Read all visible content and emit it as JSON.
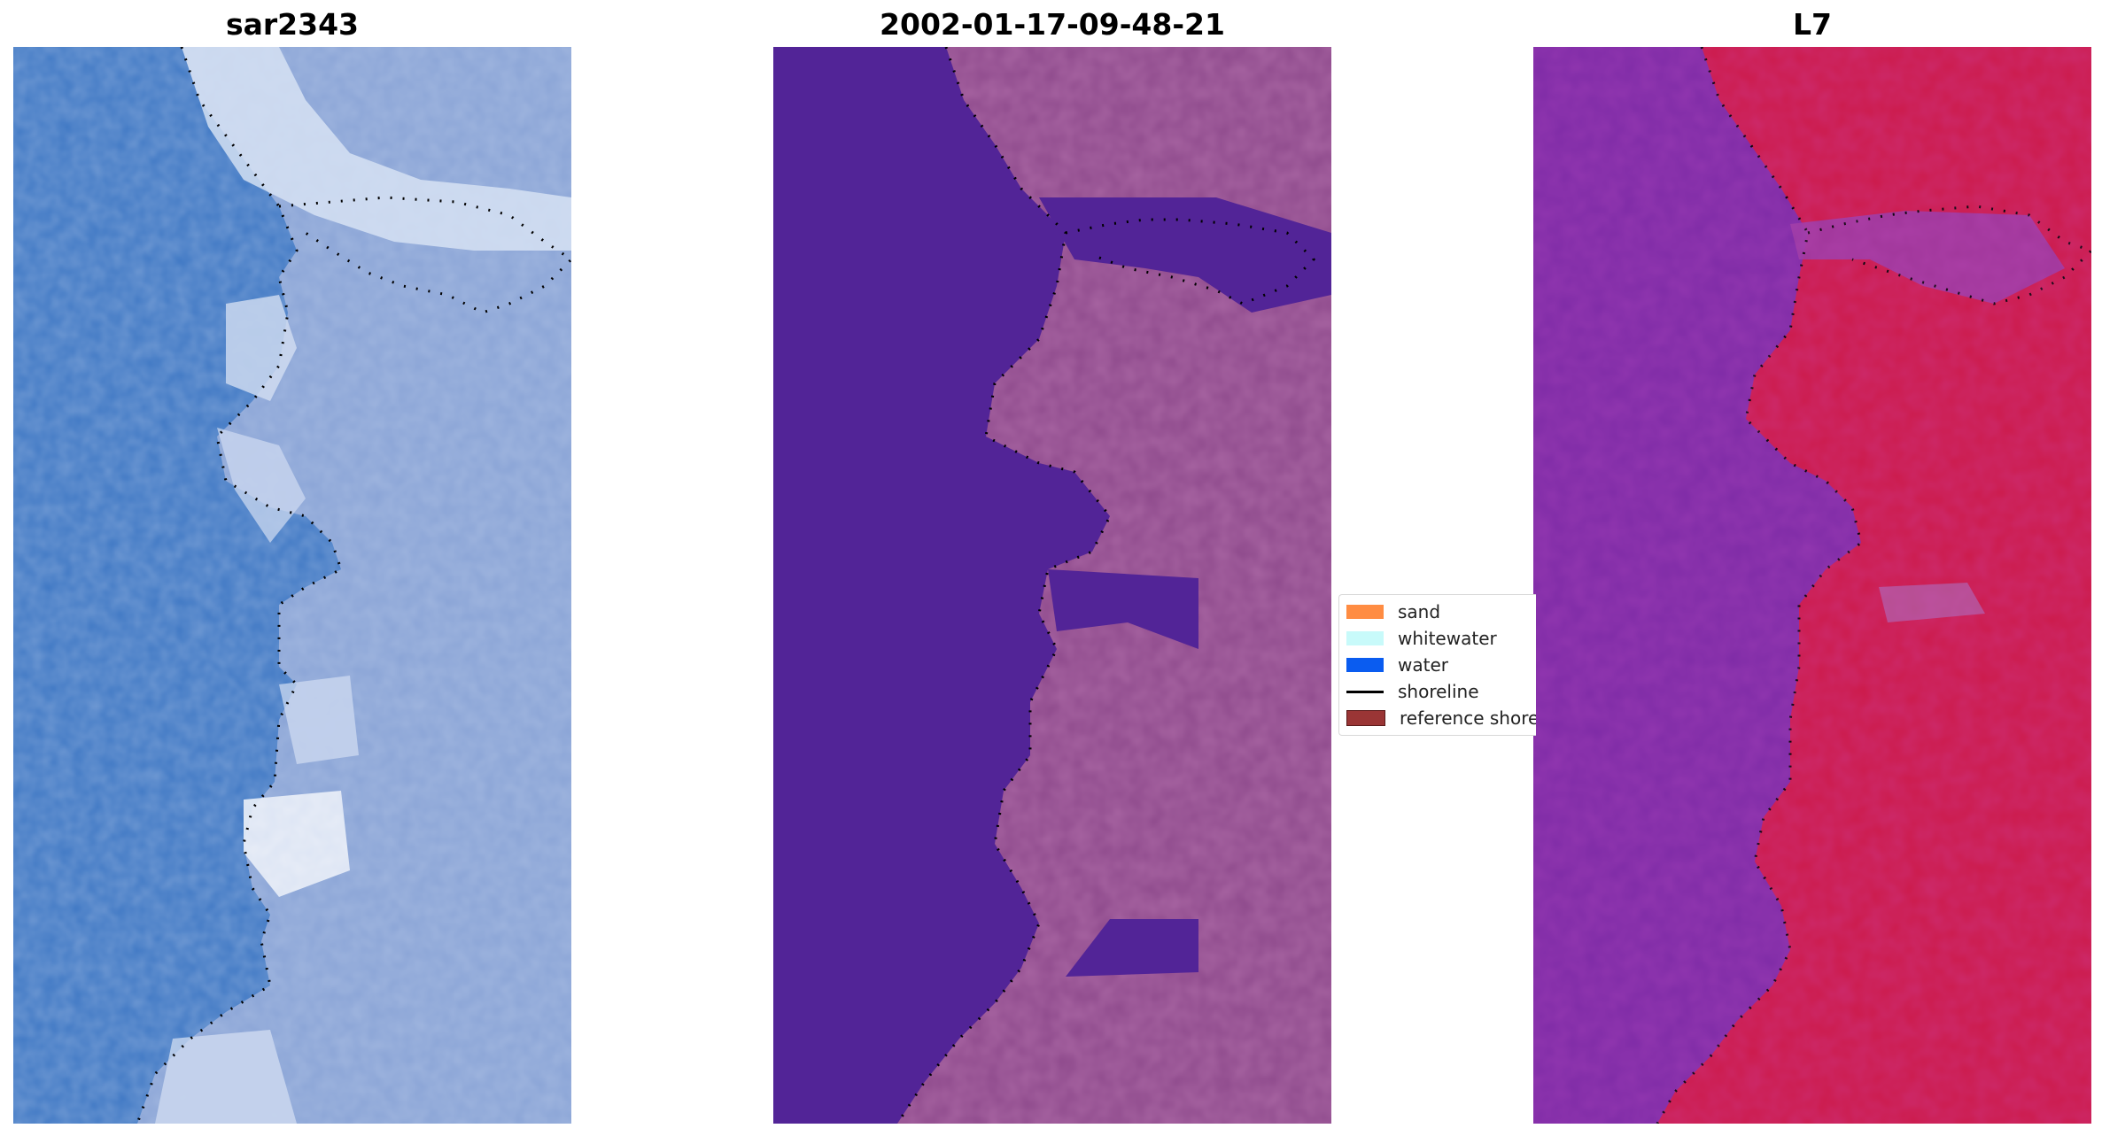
{
  "panels": [
    {
      "title": "sar2343"
    },
    {
      "title": "2002-01-17-09-48-21"
    },
    {
      "title": "L7"
    }
  ],
  "legend": {
    "items": [
      {
        "label": "sand",
        "color": "#ff8c42"
      },
      {
        "label": "whitewater",
        "color": "#c8fafa"
      },
      {
        "label": "water",
        "color": "#0a5cf0"
      },
      {
        "label": "shoreline",
        "color": "#000000"
      },
      {
        "label": "reference shoreline",
        "color": "#9a3535"
      }
    ]
  },
  "colors": {
    "rgb_water": "#3f78c4",
    "rgb_land": "#8aa4d6",
    "rgb_whitewater": "#dfe8f6",
    "class_water": "#522497",
    "class_land": "#8e4a8c",
    "index_water": "#7e2ba6",
    "index_land": "#cc1a4a"
  }
}
